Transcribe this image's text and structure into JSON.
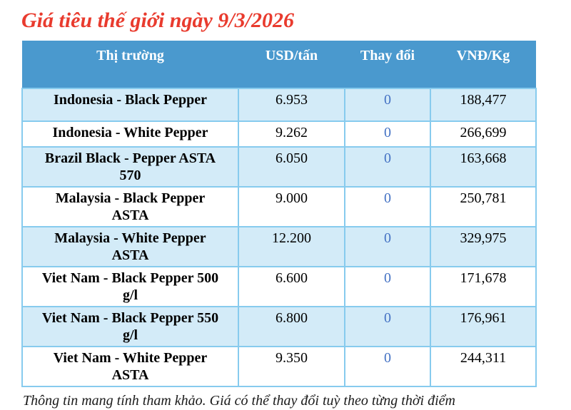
{
  "title": "Giá tiêu thế giới ngày 9/3/2026",
  "table": {
    "columns": [
      "Thị trường",
      "USD/tấn",
      "Thay đổi",
      "VNĐ/Kg"
    ],
    "rows": [
      {
        "market": "Indonesia - Black Pepper",
        "usd": "6.953",
        "change": "0",
        "vnd": "188,477"
      },
      {
        "market": "Indonesia - White Pepper",
        "usd": "9.262",
        "change": "0",
        "vnd": "266,699"
      },
      {
        "market": "Brazil Black - Pepper ASTA\n570",
        "usd": "6.050",
        "change": "0",
        "vnd": "163,668"
      },
      {
        "market": "Malaysia - Black Pepper\nASTA",
        "usd": "9.000",
        "change": "0",
        "vnd": "250,781"
      },
      {
        "market": "Malaysia - White Pepper\nASTA",
        "usd": "12.200",
        "change": "0",
        "vnd": "329,975"
      },
      {
        "market": "Viet Nam - Black Pepper 500\ng/l",
        "usd": "6.600",
        "change": "0",
        "vnd": "171,678"
      },
      {
        "market": "Viet Nam - Black Pepper 550\ng/l",
        "usd": "6.800",
        "change": "0",
        "vnd": "176,961"
      },
      {
        "market": "Viet Nam - White Pepper\nASTA",
        "usd": "9.350",
        "change": "0",
        "vnd": "244,311"
      }
    ]
  },
  "footer_note": "Thông tin mang tính tham khảo. Giá có thể thay đổi tuỳ theo từng thời điểm",
  "colors": {
    "title_red": "#E93B2E",
    "header_bg": "#4A99CE",
    "header_text": "#FFFFFF",
    "row_alt_bg": "#D3EBF8",
    "cell_border": "#87CBEE",
    "change_value_blue": "#4472C4"
  }
}
